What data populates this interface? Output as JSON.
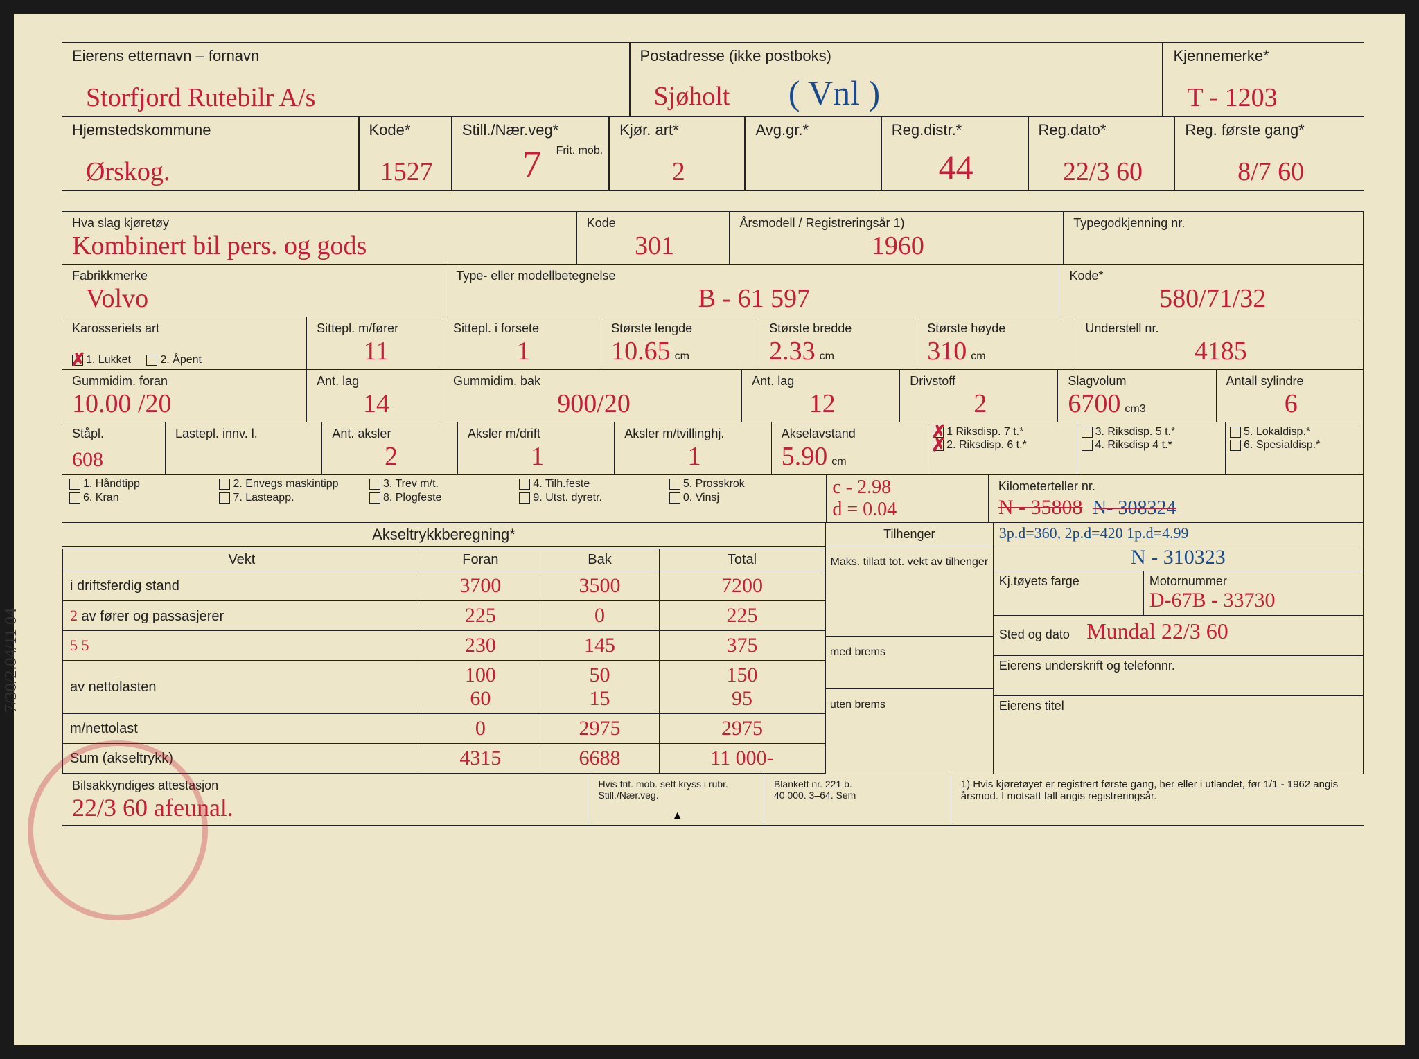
{
  "colors": {
    "paper": "#ede6c8",
    "ink": "#222222",
    "hand_red": "#c41e3a",
    "hand_blue": "#1a4a8a",
    "stamp": "rgba(200,40,60,0.55)"
  },
  "row1": {
    "owner_lbl": "Eierens etternavn – fornavn",
    "owner_val": "Storfjord Rutebilr A/s",
    "post_lbl": "Postadresse (ikke postboks)",
    "post_val": "Sjøholt",
    "post_note_blue": "( Vnl )",
    "plate_lbl": "Kjennemerke*",
    "plate_val": "T - 1203"
  },
  "row2": {
    "kommune_lbl": "Hjemstedskommune",
    "kommune_val": "Ørskog.",
    "kode_lbl": "Kode*",
    "kode_val": "1527",
    "still_lbl": "Still./Nær.veg*",
    "still_val": "7",
    "frit_lbl": "Frit. mob.",
    "kjor_lbl": "Kjør. art*",
    "kjor_val": "2",
    "avg_lbl": "Avg.gr.*",
    "avg_val": "",
    "regdistr_lbl": "Reg.distr.*",
    "regdistr_val": "44",
    "regdato_lbl": "Reg.dato*",
    "regdato_val": "22/3 60",
    "regforste_lbl": "Reg. første gang*",
    "regforste_val": "8/7 60"
  },
  "row3": {
    "slag_lbl": "Hva slag kjøretøy",
    "slag_val": "Kombinert bil pers. og gods",
    "kode_lbl": "Kode",
    "kode_val": "301",
    "aar_lbl": "Årsmodell / Registreringsår 1)",
    "aar_val": "1960",
    "typegodk_lbl": "Typegodkjenning nr.",
    "typegodk_val": ""
  },
  "row4": {
    "fabrikk_lbl": "Fabrikkmerke",
    "fabrikk_val": "Volvo",
    "type_lbl": "Type- eller modellbetegnelse",
    "type_val": "B - 61 597",
    "kode_lbl": "Kode*",
    "kode_val": "580/71/32"
  },
  "row5": {
    "karosseri_lbl": "Karosseriets art",
    "kaross_opt1": "1. Lukket",
    "kaross_opt2": "2. Åpent",
    "kaross_checked": 1,
    "sittepl_m_lbl": "Sittepl. m/fører",
    "sittepl_m_val": "11",
    "sittepl_f_lbl": "Sittepl. i forsete",
    "sittepl_f_val": "1",
    "lengde_lbl": "Største lengde",
    "lengde_val": "10.65",
    "bredde_lbl": "Største bredde",
    "bredde_val": "2.33",
    "hoyde_lbl": "Største høyde",
    "hoyde_val": "310",
    "understell_lbl": "Understell nr.",
    "understell_val": "4185"
  },
  "row6": {
    "gummif_lbl": "Gummidim. foran",
    "gummif_val": "10.00 /20",
    "antlag1_lbl": "Ant. lag",
    "antlag1_val": "14",
    "gummib_lbl": "Gummidim. bak",
    "gummib_val": "900/20",
    "antlag2_lbl": "Ant. lag",
    "antlag2_val": "12",
    "drivstoff_lbl": "Drivstoff",
    "drivstoff_val": "2",
    "slagvolum_lbl": "Slagvolum",
    "slagvolum_val": "6700",
    "sylindre_lbl": "Antall sylindre",
    "sylindre_val": "6"
  },
  "row7": {
    "stapl_lbl": "Ståpl.",
    "stapl_val": "608",
    "lastepl_lbl": "Lastepl. innv. l.",
    "lastepl_val": "",
    "antaksler_lbl": "Ant. aksler",
    "antaksler_val": "2",
    "akslerdrift_lbl": "Aksler m/drift",
    "akslerdrift_val": "1",
    "akslertvill_lbl": "Aksler m/tvillinghj.",
    "akslertvill_val": "1",
    "akselavstand_lbl": "Akselavstand",
    "akselavstand_val": "5.90",
    "disp_options": [
      {
        "chk": true,
        "txt": "1 Riksdisp. 7 t.*"
      },
      {
        "chk": true,
        "txt": "2. Riksdisp. 6 t.*"
      }
    ],
    "disp_options2": [
      {
        "chk": false,
        "txt": "3. Riksdisp. 5 t.*"
      },
      {
        "chk": false,
        "txt": "4. Riksdisp 4 t.*"
      }
    ],
    "disp_options3": [
      {
        "chk": false,
        "txt": "5. Lokaldisp.*"
      },
      {
        "chk": false,
        "txt": "6. Spesialdisp.*"
      }
    ]
  },
  "row8": {
    "opts": [
      "1. Håndtipp",
      "2. Envegs maskintipp",
      "3. Trev m/t.",
      "4. Tilh.feste",
      "5. Prosskrok",
      "6. Kran",
      "7. Lasteapp.",
      "8. Plogfeste",
      "9. Utst. dyretr.",
      "0. Vinsj"
    ],
    "cvals": "c - 2.98",
    "dvals": "d = 0.04",
    "km_lbl": "Kilometerteller nr.",
    "km_val_old": "N - 35808",
    "km_val_old2": "N- 308324",
    "km_val_new": "N - 310323"
  },
  "axle": {
    "title": "Akseltrykkberegning*",
    "cols": [
      "Vekt",
      "Foran",
      "Bak",
      "Total",
      "Tilhenger"
    ],
    "rows": [
      {
        "lbl": "i driftsferdig stand",
        "f": "3700",
        "b": "3500",
        "t": "7200"
      },
      {
        "lbl": "av fører og passasjerer",
        "note": "2",
        "f": "225",
        "b": "0",
        "t": "225"
      },
      {
        "lbl": "",
        "note": "5   5",
        "f": "230",
        "b": "145",
        "t": "375"
      },
      {
        "lbl": "av nettolasten",
        "f": "100\n60",
        "b": "50\n15",
        "t": "150\n95"
      },
      {
        "lbl": "m/nettolast",
        "f": "0",
        "b": "2975",
        "t": "2975"
      },
      {
        "lbl": "Sum (akseltrykk)",
        "f": "4315",
        "b": "6688",
        "t": "11 000-"
      }
    ],
    "tilh_lbl1": "Maks. tillatt tot. vekt av tilhenger",
    "tilh_lbl2": "med brems",
    "tilh_lbl3": "uten brems",
    "blue_notes": "3p.d=360, 2p.d=420   1p.d=4.99",
    "farge_lbl": "Kj.tøyets farge",
    "motor_lbl": "Motornummer",
    "motor_val": "D-67B - 33730",
    "sted_lbl": "Sted og dato",
    "sted_val": "Mundal 22/3 60",
    "under_lbl": "Eierens underskrift og telefonnr.",
    "titel_lbl": "Eierens titel"
  },
  "footer": {
    "att_lbl": "Bilsakkyndiges attestasjon",
    "att_val": "22/3 60 afeunal.",
    "hvis_lbl": "Hvis frit. mob. sett kryss i rubr. Still./Nær.veg.",
    "blankett": "Blankett nr. 221 b.\n40 000. 3–64. Sem",
    "note1": "1) Hvis kjøretøyet er registrert første gang, her eller i utlandet, før 1/1 - 1962 angis årsmod. I motsatt fall angis registreringsår."
  },
  "sidebar": "7/30/2.04/11 04"
}
